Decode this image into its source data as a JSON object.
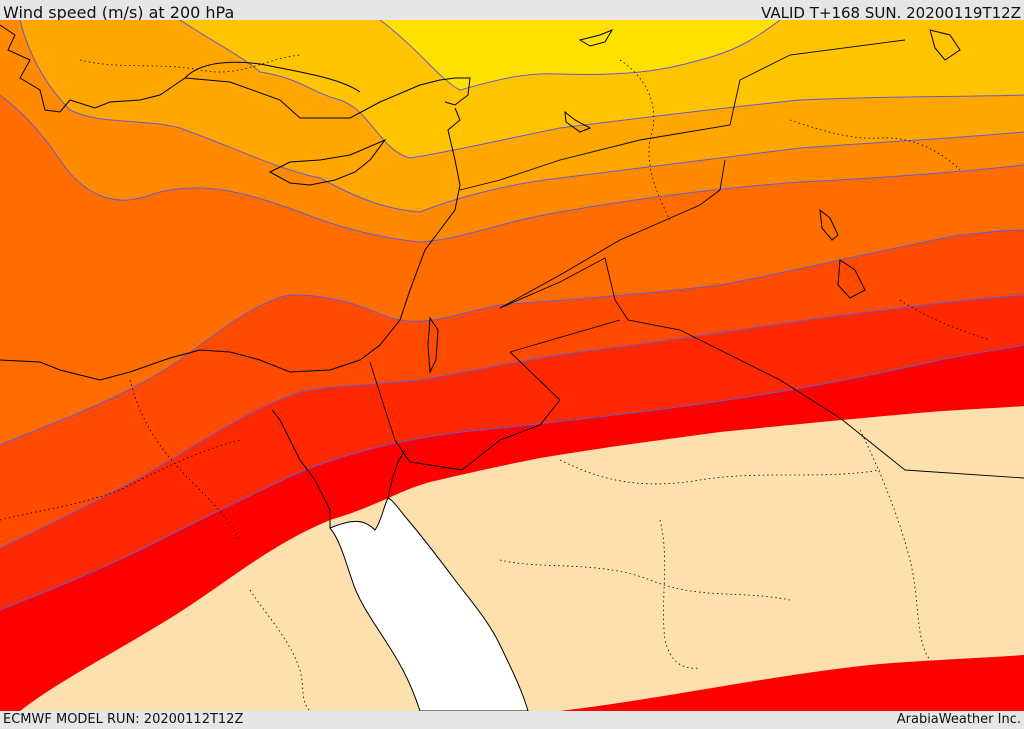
{
  "header": {
    "title": "Wind speed (m/s) at 200 hPa",
    "valid": "VALID T+168 SUN. 20200119T12Z"
  },
  "footer": {
    "model_run": "ECMWF MODEL RUN: 20200112T12Z",
    "credit": "ArabiaWeather Inc."
  },
  "colors": {
    "band_1": "#ffe000",
    "band_2": "#ffc400",
    "band_3": "#ffa600",
    "band_4": "#ff8a00",
    "band_5": "#ff6c00",
    "band_6": "#ff4a00",
    "band_7": "#ff2800",
    "band_8": "#ff0000",
    "calm": "#fde0ad",
    "sea": "#ffffff",
    "contour": "#6a5acd",
    "coast": "#000000"
  }
}
